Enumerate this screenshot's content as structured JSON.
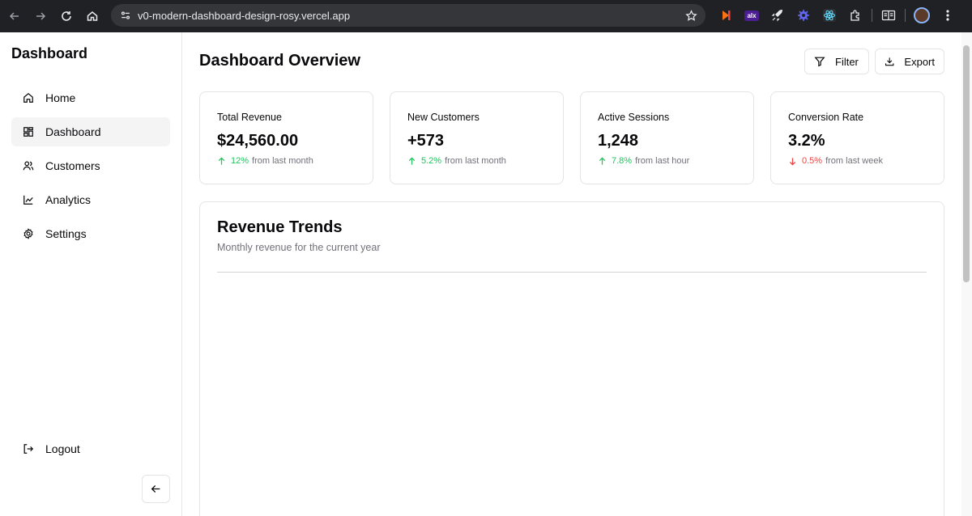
{
  "browser": {
    "url": "v0-modern-dashboard-design-rosy.vercel.app",
    "extensions": [
      "pdf-extension-icon",
      "alx-extension-icon",
      "rocket-extension-icon",
      "gear-extension-icon",
      "react-extension-icon",
      "puzzle-extensions-icon"
    ],
    "ext_alx_label": "alx"
  },
  "sidebar": {
    "brand": "Dashboard",
    "items": [
      {
        "label": "Home",
        "icon": "home-icon",
        "active": false
      },
      {
        "label": "Dashboard",
        "icon": "dashboard-icon",
        "active": true
      },
      {
        "label": "Customers",
        "icon": "users-icon",
        "active": false
      },
      {
        "label": "Analytics",
        "icon": "chart-line-icon",
        "active": false
      },
      {
        "label": "Settings",
        "icon": "settings-icon",
        "active": false
      }
    ],
    "logout_label": "Logout"
  },
  "header": {
    "title": "Dashboard Overview",
    "filter_label": "Filter",
    "export_label": "Export"
  },
  "stats": [
    {
      "title": "Total Revenue",
      "value": "$24,560.00",
      "change": "12%",
      "direction": "up",
      "suffix": "from last month"
    },
    {
      "title": "New Customers",
      "value": "+573",
      "change": "5.2%",
      "direction": "up",
      "suffix": "from last month"
    },
    {
      "title": "Active Sessions",
      "value": "1,248",
      "change": "7.8%",
      "direction": "up",
      "suffix": "from last hour"
    },
    {
      "title": "Conversion Rate",
      "value": "3.2%",
      "change": "0.5%",
      "direction": "down",
      "suffix": "from last week"
    }
  ],
  "trends": {
    "title": "Revenue Trends",
    "subtitle": "Monthly revenue for the current year"
  },
  "colors": {
    "positive": "#22c55e",
    "negative": "#ef4444",
    "border": "#e4e4e7",
    "active_bg": "#f4f4f5",
    "chrome_bg": "#202124"
  }
}
